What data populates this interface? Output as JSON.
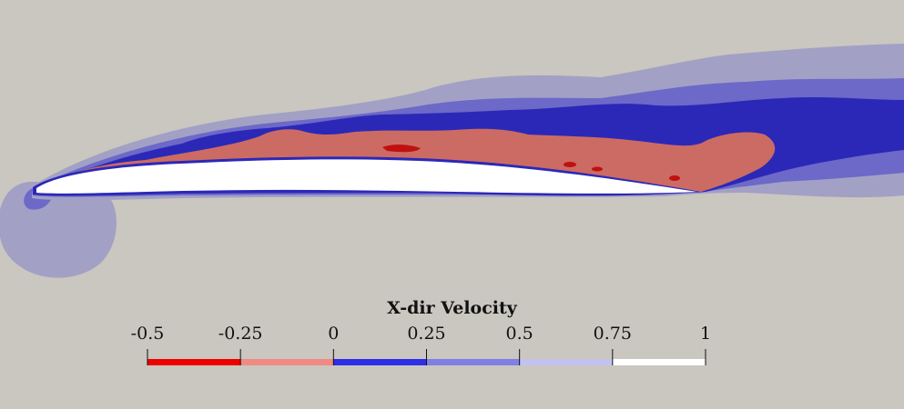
{
  "colorbar": {
    "title": "X-dir Velocity",
    "ticks": [
      "-0.5",
      "-0.25",
      "0",
      "0.25",
      "0.5",
      "0.75",
      "1"
    ],
    "bands": [
      {
        "from": -0.5,
        "to": -0.25,
        "color": "#ee0000"
      },
      {
        "from": -0.25,
        "to": 0,
        "color": "#f08a83"
      },
      {
        "from": 0,
        "to": 0.25,
        "color": "#2e2ee6"
      },
      {
        "from": 0.25,
        "to": 0.5,
        "color": "#7f7fe6"
      },
      {
        "from": 0.5,
        "to": 0.75,
        "color": "#c2c2f0"
      },
      {
        "from": 0.75,
        "to": 1,
        "color": "#ffffff"
      }
    ]
  },
  "field_colors": {
    "background": "#c9c7bf",
    "wake_outer": "#a3a0c6",
    "wake_mid": "#6c69c8",
    "wake_inner": "#2b28b8",
    "recirculation": "#cc6b63",
    "reverse_flow": "#c01010",
    "airfoil": "#ffffff"
  }
}
